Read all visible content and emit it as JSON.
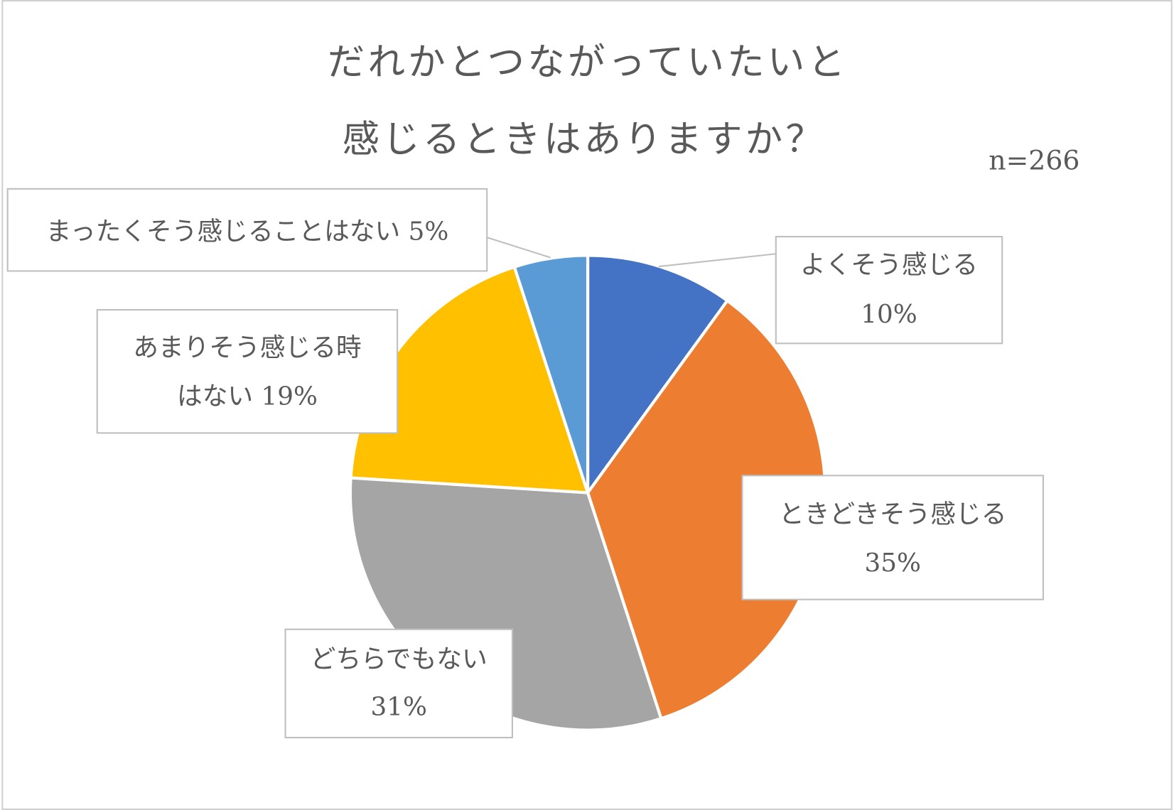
{
  "chart_data": {
    "type": "pie",
    "title_lines": [
      "だれかとつながっていたいと",
      "感じるときはありますか？"
    ],
    "note": "n=266",
    "categories": [
      "よくそう感じる",
      "ときどきそう感じる",
      "どちらでもない",
      "あまりそう感じる時はない",
      "まったくそう感じることはない"
    ],
    "values": [
      10,
      35,
      31,
      19,
      5
    ],
    "unit": "%",
    "colors": [
      "#4472C4",
      "#ED7D31",
      "#A5A5A5",
      "#FFC000",
      "#5B9BD5"
    ],
    "label_lines": [
      [
        "よくそう感じる",
        "10%"
      ],
      [
        "ときどきそう感じる",
        "35%"
      ],
      [
        "どちらでもない",
        "31%"
      ],
      [
        "あまりそう感じる時",
        "はない 19%"
      ],
      [
        "まったくそう感じることはない 5%"
      ]
    ],
    "legend": "none"
  }
}
